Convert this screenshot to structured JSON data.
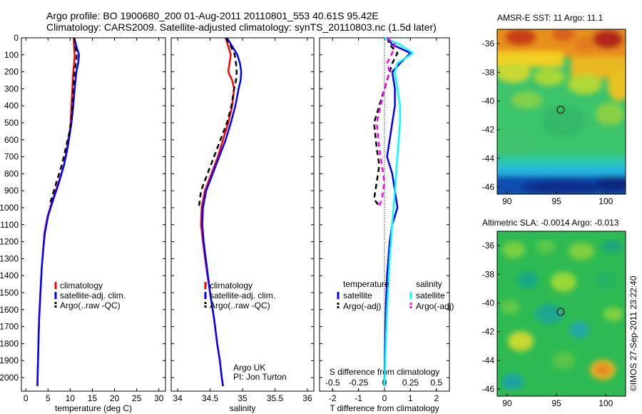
{
  "header": {
    "line1": "Argo profile: BO 1900680_200 01-Aug-2011 20110801_553 40.61S 95.42E",
    "line2": "Climatology: CARS2009. Satellite-adjusted climatology: synTS_20110803.nc (1.5d later)"
  },
  "colors": {
    "climatology": "#ff0000",
    "satellite": "#0000ff",
    "argo": "#000000",
    "satellite_salinity": "#00ffff",
    "argo_salinity": "#ff00ff"
  },
  "credit": {
    "line1": "Argo UK",
    "line2": "PI: Jon Turton"
  },
  "footer_vertical": "©IMOS 27-Sep-2011 23:22:40",
  "chart_data": [
    {
      "id": "temperature_profile",
      "type": "line",
      "xlabel": "temperature (deg C)",
      "ylabel": "",
      "xlim": [
        -1,
        31.5
      ],
      "ylim": [
        2080,
        0
      ],
      "xticks": [
        0,
        5,
        10,
        15,
        20,
        25,
        30
      ],
      "yticks": [
        0,
        100,
        200,
        300,
        400,
        500,
        600,
        700,
        800,
        900,
        1000,
        1100,
        1200,
        1300,
        1400,
        1500,
        1600,
        1700,
        1800,
        1900,
        2000
      ],
      "legend_position": "lower-right",
      "series": [
        {
          "name": "climatology",
          "style": "solid",
          "color_key": "climatology",
          "x": [
            10.8,
            10.9,
            11.0,
            10.9,
            10.7,
            10.5,
            10.3,
            10.1,
            9.9,
            9.3,
            8.6,
            7.4,
            6.1,
            4.9,
            4.2,
            3.9,
            3.6,
            3.4,
            3.2,
            3.0,
            2.9,
            2.8,
            2.7,
            2.6
          ],
          "y": [
            0,
            50,
            100,
            150,
            200,
            300,
            400,
            500,
            550,
            650,
            750,
            850,
            950,
            1050,
            1150,
            1250,
            1350,
            1450,
            1550,
            1650,
            1750,
            1850,
            1950,
            2050
          ]
        },
        {
          "name": "satellite-adj. clim.",
          "style": "solid",
          "color_key": "satellite",
          "x": [
            10.9,
            11.4,
            12.0,
            11.8,
            11.4,
            11.0,
            10.7,
            10.3,
            10.0,
            9.4,
            8.6,
            7.5,
            6.2,
            5.0,
            4.3,
            3.9,
            3.6,
            3.4,
            3.2,
            3.0,
            2.9,
            2.8,
            2.7,
            2.6
          ],
          "y": [
            0,
            50,
            100,
            150,
            200,
            300,
            400,
            500,
            550,
            650,
            750,
            850,
            950,
            1050,
            1150,
            1250,
            1350,
            1450,
            1550,
            1650,
            1750,
            1850,
            1950,
            2050
          ]
        },
        {
          "name": "Argo(..raw -QC)",
          "style": "dashed",
          "color_key": "argo",
          "x": [
            10.9,
            11.1,
            11.5,
            11.3,
            11.0,
            10.7,
            10.5,
            10.2,
            9.9,
            9.0,
            8.1,
            6.9,
            5.3
          ],
          "y": [
            0,
            50,
            100,
            150,
            200,
            300,
            400,
            500,
            550,
            650,
            750,
            850,
            990
          ]
        }
      ]
    },
    {
      "id": "salinity_profile",
      "type": "line",
      "xlabel": "salinity",
      "ylabel": "",
      "xlim": [
        33.9,
        36.1
      ],
      "ylim": [
        2080,
        0
      ],
      "xticks": [
        34,
        34.5,
        35,
        35.5,
        36
      ],
      "legend_position": "lower-right",
      "series": [
        {
          "name": "climatology",
          "style": "solid",
          "color_key": "climatology",
          "x": [
            34.74,
            34.78,
            34.82,
            34.8,
            34.78,
            34.84,
            34.87,
            34.84,
            34.78,
            34.7,
            34.62,
            34.52,
            34.42,
            34.37,
            34.36,
            34.39,
            34.44,
            34.5,
            34.56,
            34.61,
            34.65,
            34.68,
            34.7
          ],
          "y": [
            0,
            50,
            100,
            150,
            200,
            250,
            300,
            400,
            500,
            600,
            700,
            800,
            900,
            1000,
            1100,
            1200,
            1350,
            1500,
            1650,
            1800,
            1900,
            2000,
            2050
          ]
        },
        {
          "name": "satellite-adj. clim.",
          "style": "solid",
          "color_key": "satellite",
          "x": [
            34.76,
            34.84,
            34.92,
            34.96,
            34.98,
            34.97,
            34.94,
            34.89,
            34.82,
            34.74,
            34.64,
            34.54,
            34.44,
            34.39,
            34.38,
            34.4,
            34.45,
            34.5,
            34.56,
            34.61,
            34.65,
            34.68,
            34.7
          ],
          "y": [
            0,
            50,
            100,
            150,
            200,
            250,
            300,
            400,
            500,
            600,
            700,
            800,
            900,
            1000,
            1100,
            1200,
            1350,
            1500,
            1650,
            1800,
            1900,
            2000,
            2050
          ]
        },
        {
          "name": "Argo(..raw -QC)",
          "style": "dashed",
          "color_key": "argo",
          "x": [
            34.74,
            34.82,
            34.88,
            34.9,
            34.91,
            34.9,
            34.87,
            34.83,
            34.76,
            34.66,
            34.56,
            34.46,
            34.36,
            34.33
          ],
          "y": [
            0,
            50,
            100,
            150,
            200,
            250,
            300,
            400,
            500,
            600,
            700,
            800,
            900,
            990
          ]
        }
      ]
    },
    {
      "id": "difference_profile",
      "type": "line",
      "xlabel": "T difference from climatology",
      "x2label": "S difference from climatology",
      "ylabel": "",
      "xlim": [
        -2.5,
        2.5
      ],
      "ylim": [
        2080,
        0
      ],
      "xticks": [
        -2,
        -1,
        0,
        1,
        2
      ],
      "x2ticks": [
        -0.5,
        -0.25,
        0,
        0.25,
        0.5
      ],
      "x2ticklabels": [
        "-0.5",
        "-0.25",
        "0",
        "0.25",
        "0.5"
      ],
      "legend_position": "lower-right",
      "legend_groups": [
        "temperature",
        "salinity"
      ],
      "series": [
        {
          "name": "satellite",
          "group": "temperature",
          "style": "solid",
          "color_key": "satellite",
          "x": [
            0.1,
            0.3,
            1.0,
            0.6,
            0.3,
            0.4,
            0.4,
            0.3,
            0.2,
            0.1,
            0.3,
            0.4,
            0.5,
            0.3,
            0.2,
            0.1,
            0.05,
            0.02,
            0.0
          ],
          "y": [
            0,
            40,
            90,
            150,
            200,
            300,
            400,
            500,
            600,
            700,
            800,
            900,
            1000,
            1100,
            1200,
            1400,
            1600,
            1800,
            2050
          ]
        },
        {
          "name": "Argo(-adj)",
          "group": "temperature",
          "style": "dashed",
          "color_key": "argo",
          "x": [
            0.1,
            0.2,
            0.5,
            0.3,
            0.2,
            0.0,
            -0.4,
            -0.3,
            -0.2,
            -0.3,
            -0.4,
            -0.2
          ],
          "y": [
            0,
            40,
            90,
            150,
            200,
            300,
            500,
            650,
            750,
            850,
            950,
            990
          ]
        },
        {
          "name": "satellite",
          "group": "salinity",
          "style": "solid",
          "color_key": "satellite_salinity",
          "x": [
            0.0,
            0.6,
            1.1,
            0.5,
            0.4,
            0.5,
            0.6,
            0.6,
            0.5,
            0.4,
            0.3,
            0.2,
            0.1,
            0.05,
            0.0
          ],
          "y": [
            0,
            40,
            90,
            150,
            200,
            300,
            400,
            500,
            700,
            900,
            1100,
            1300,
            1600,
            1800,
            2050
          ]
        },
        {
          "name": "Argo(-adj)",
          "group": "salinity",
          "style": "dashed",
          "color_key": "argo_salinity",
          "x": [
            0.1,
            0.4,
            0.3,
            0.1,
            0.2,
            0.0,
            -0.3,
            -0.2,
            -0.1,
            0.0,
            -0.1,
            -0.2
          ],
          "y": [
            0,
            40,
            90,
            150,
            200,
            300,
            500,
            650,
            750,
            850,
            950,
            990
          ]
        }
      ]
    },
    {
      "id": "sst_map",
      "type": "heatmap",
      "title": "AMSR-E SST: 11 Argo: 11.1",
      "xlim": [
        89,
        102
      ],
      "ylim": [
        -46.5,
        -35
      ],
      "xticks": [
        90,
        95,
        100
      ],
      "yticks": [
        -36,
        -38,
        -40,
        -42,
        -44,
        -46
      ],
      "marker": {
        "lon": 95.42,
        "lat": -40.61
      }
    },
    {
      "id": "sla_map",
      "type": "heatmap",
      "title": "Altimetric SLA: -0.0014 Argo: -0.013",
      "xlim": [
        89,
        102
      ],
      "ylim": [
        -46.5,
        -35
      ],
      "xticks": [
        90,
        95,
        100
      ],
      "yticks": [
        -36,
        -38,
        -40,
        -42,
        -44,
        -46
      ],
      "marker": {
        "lon": 95.42,
        "lat": -40.61
      }
    }
  ]
}
